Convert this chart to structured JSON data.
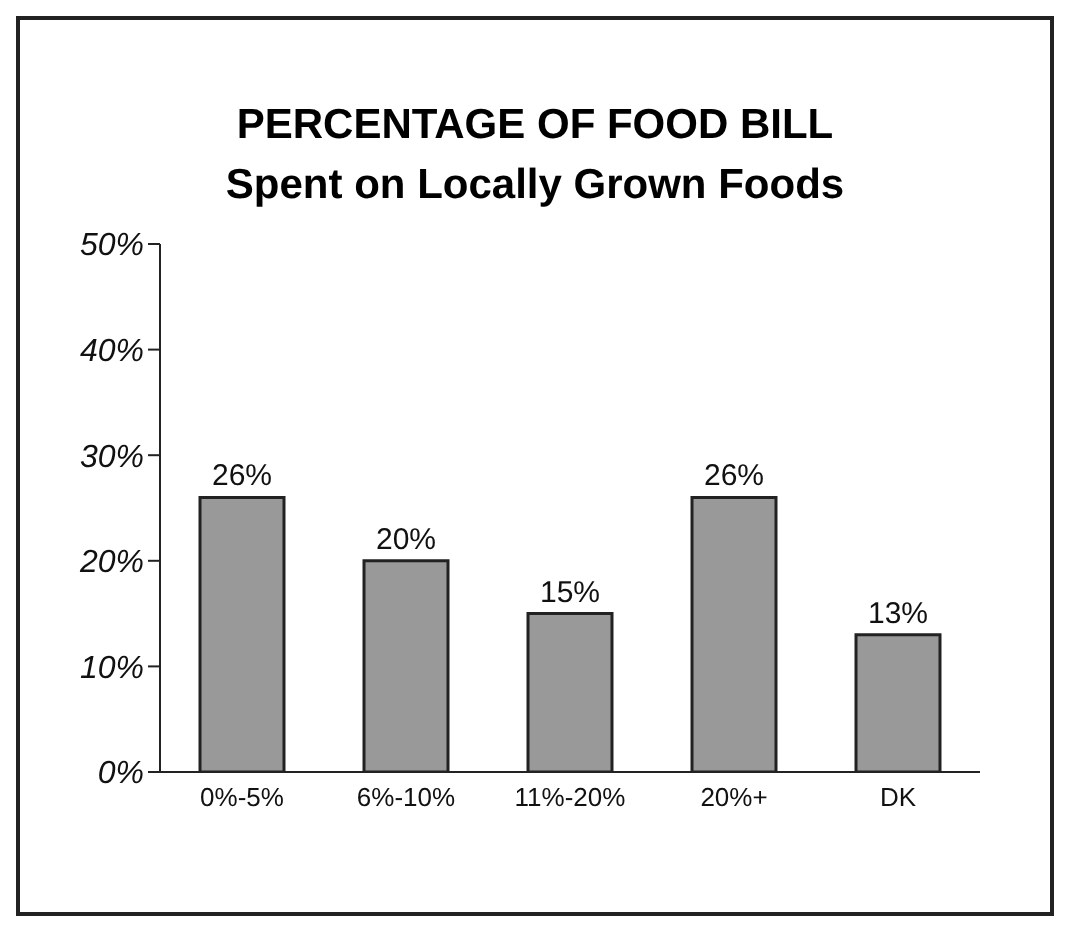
{
  "chart_data": {
    "type": "bar",
    "title": "PERCENTAGE OF FOOD BILL",
    "subtitle": "Spent on Locally Grown Foods",
    "categories": [
      "0%-5%",
      "6%-10%",
      "11%-20%",
      "20%+",
      "DK"
    ],
    "values": [
      26,
      20,
      15,
      26,
      13
    ],
    "value_labels": [
      "26%",
      "20%",
      "15%",
      "26%",
      "13%"
    ],
    "color": "#999999",
    "ylim": [
      0,
      50
    ],
    "yticks": [
      {
        "value": 0,
        "label": "0%"
      },
      {
        "value": 10,
        "label": "10%"
      },
      {
        "value": 20,
        "label": "20%"
      },
      {
        "value": 30,
        "label": "30%"
      },
      {
        "value": 40,
        "label": "40%"
      },
      {
        "value": 50,
        "label": "50%"
      }
    ],
    "grid": false
  }
}
